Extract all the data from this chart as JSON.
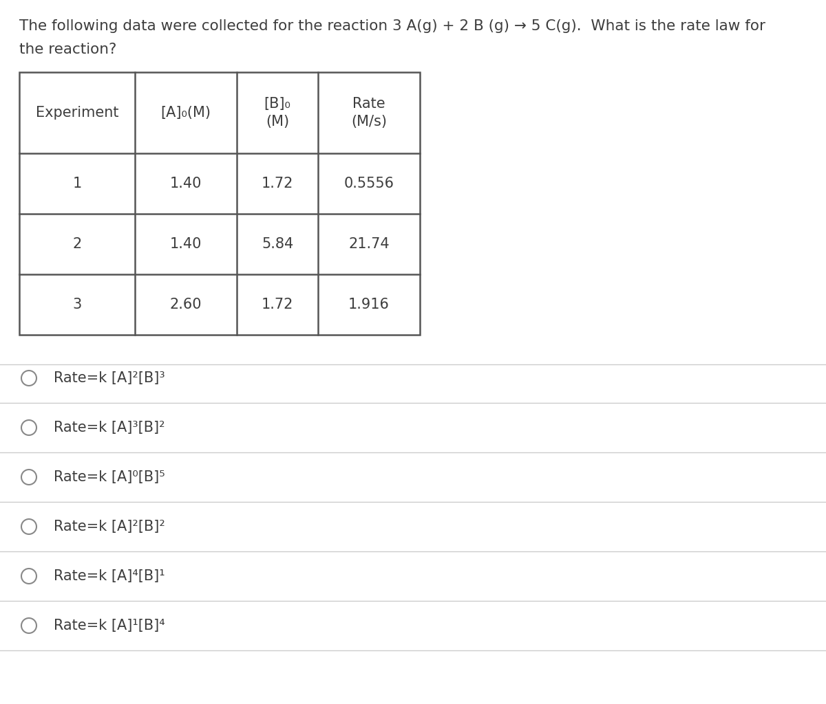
{
  "title_line1": "The following data were collected for the reaction 3 A(g) + 2 B (g) → 5 C(g).  What is the rate law for",
  "title_line2": "the reaction?",
  "col_headers": [
    "Experiment",
    "[A]₀(M)",
    "[B]₀\n(M)",
    "Rate\n(M/s)"
  ],
  "table_data": [
    [
      "1",
      "1.40",
      "1.72",
      "0.5556"
    ],
    [
      "2",
      "1.40",
      "5.84",
      "21.74"
    ],
    [
      "3",
      "2.60",
      "1.72",
      "1.916"
    ]
  ],
  "choices": [
    "Rate=k [A]²[B]³",
    "Rate=k [A]³[B]²",
    "Rate=k [A]⁰[B]⁵",
    "Rate=k [A]²[B]²",
    "Rate=k [A]⁴[B]¹",
    "Rate=k [A]¹[B]⁴"
  ],
  "bg_color": "#ffffff",
  "text_color": "#3d3d3d",
  "table_border_color": "#555555",
  "choice_line_color": "#cccccc",
  "circle_color": "#888888",
  "font_size_title": 15.5,
  "font_size_table": 15,
  "font_size_choices": 15,
  "fig_width": 12.0,
  "fig_height": 10.24,
  "dpi": 100
}
